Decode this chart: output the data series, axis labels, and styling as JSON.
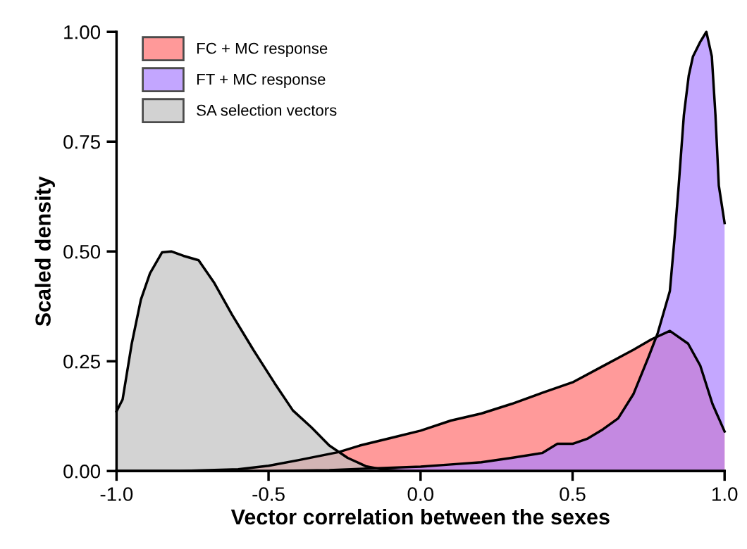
{
  "chart_data": {
    "type": "area",
    "xlabel": "Vector correlation between the sexes",
    "ylabel": "Scaled density",
    "xlim": [
      -1,
      1
    ],
    "ylim": [
      0,
      1
    ],
    "xticks": [
      {
        "value": -1,
        "label": "-1.0"
      },
      {
        "value": -0.5,
        "label": "-0.5"
      },
      {
        "value": 0,
        "label": "0.0"
      },
      {
        "value": 0.5,
        "label": "0.5"
      },
      {
        "value": 1,
        "label": "1.0"
      }
    ],
    "yticks": [
      {
        "value": 0,
        "label": "0.00"
      },
      {
        "value": 0.25,
        "label": "0.25"
      },
      {
        "value": 0.5,
        "label": "0.50"
      },
      {
        "value": 0.75,
        "label": "0.75"
      },
      {
        "value": 1,
        "label": "1.00"
      }
    ],
    "legend": "top left",
    "grid": false,
    "series": [
      {
        "name": "FC + MC response",
        "color": "#ff6f6f",
        "x": [
          -1,
          -0.8,
          -0.6,
          -0.5,
          -0.4,
          -0.27,
          -0.2,
          -0.1,
          0,
          0.1,
          0.2,
          0.3,
          0.4,
          0.5,
          0.6,
          0.7,
          0.76,
          0.82,
          0.88,
          0.92,
          0.96,
          1.0
        ],
        "values": [
          0,
          0,
          0.004,
          0.012,
          0.025,
          0.043,
          0.058,
          0.075,
          0.092,
          0.115,
          0.131,
          0.153,
          0.178,
          0.202,
          0.239,
          0.276,
          0.3,
          0.319,
          0.29,
          0.24,
          0.153,
          0.09
        ]
      },
      {
        "name": "FT + MC response",
        "color": "#ab81ff",
        "x": [
          -1,
          -0.5,
          -0.3,
          -0.2,
          0,
          0.1,
          0.2,
          0.3,
          0.4,
          0.45,
          0.5,
          0.55,
          0.6,
          0.65,
          0.7,
          0.75,
          0.78,
          0.82,
          0.835,
          0.849,
          0.866,
          0.882,
          0.896,
          0.919,
          0.94,
          0.958,
          0.97,
          0.981,
          1.0
        ],
        "values": [
          0,
          0,
          0.002,
          0.005,
          0.01,
          0.015,
          0.02,
          0.03,
          0.041,
          0.062,
          0.062,
          0.074,
          0.095,
          0.12,
          0.175,
          0.26,
          0.314,
          0.41,
          0.527,
          0.65,
          0.81,
          0.9,
          0.944,
          0.976,
          1.0,
          0.944,
          0.81,
          0.65,
          0.565
        ]
      },
      {
        "name": "SA selection vectors",
        "color": "#c0c0c0",
        "x": [
          -1,
          -0.98,
          -0.95,
          -0.92,
          -0.89,
          -0.85,
          -0.82,
          -0.78,
          -0.73,
          -0.68,
          -0.62,
          -0.55,
          -0.48,
          -0.42,
          -0.36,
          -0.3,
          -0.24,
          -0.18,
          -0.12,
          -0.05,
          0.5,
          1.0
        ],
        "values": [
          0.136,
          0.163,
          0.29,
          0.39,
          0.45,
          0.498,
          0.5,
          0.49,
          0.48,
          0.43,
          0.356,
          0.276,
          0.2,
          0.138,
          0.1,
          0.058,
          0.03,
          0.011,
          0.003,
          0,
          0,
          0
        ]
      }
    ]
  }
}
